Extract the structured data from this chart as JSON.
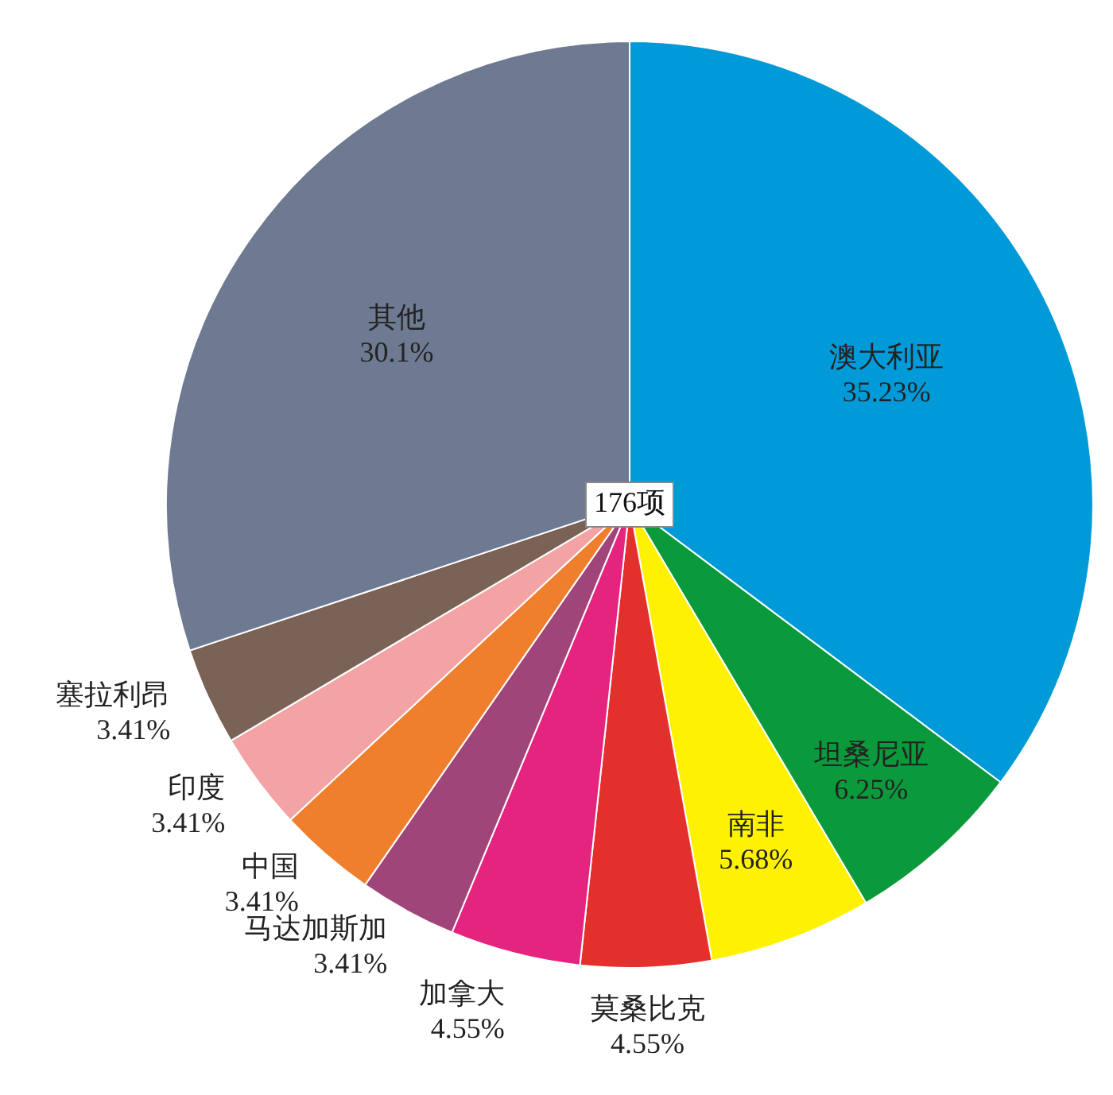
{
  "chart_data": {
    "type": "pie",
    "categories": [
      "澳大利亚",
      "坦桑尼亚",
      "南非",
      "莫桑比克",
      "加拿大",
      "马达加斯加",
      "中国",
      "印度",
      "塞拉利昂",
      "其他"
    ],
    "values": [
      35.23,
      6.25,
      5.68,
      4.55,
      4.55,
      3.41,
      3.41,
      3.41,
      3.41,
      30.1
    ],
    "value_labels": [
      "35.23%",
      "6.25%",
      "5.68%",
      "4.55%",
      "4.55%",
      "3.41%",
      "3.41%",
      "3.41%",
      "3.41%",
      "30.1%"
    ],
    "colors": [
      "#009ad8",
      "#0a9a3c",
      "#fff200",
      "#e3302c",
      "#e5247f",
      "#a0457a",
      "#ef7f2c",
      "#f4a3a5",
      "#7a6257",
      "#6e7a91"
    ],
    "annotations": [
      "176项"
    ],
    "legend": false
  }
}
